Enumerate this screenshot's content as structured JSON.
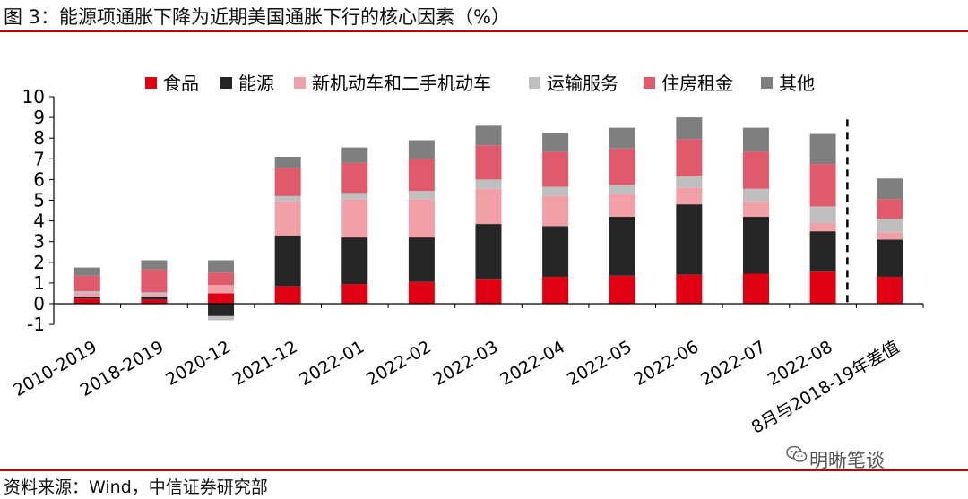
{
  "title": "图 3：能源项通胀下降为近期美国通胀下行的核心因素（%）",
  "source": "资料来源：Wind，中信证券研究部",
  "watermark": "明晰笔谈",
  "chart_data": {
    "type": "bar",
    "stacked": true,
    "categories": [
      "2010-2019",
      "2018-2019",
      "2020-12",
      "2021-12",
      "2022-01",
      "2022-02",
      "2022-03",
      "2022-04",
      "2022-05",
      "2022-06",
      "2022-07",
      "2022-08",
      "8月与2018-19年差值"
    ],
    "series": [
      {
        "name": "食品",
        "color": "#e00012",
        "values": [
          0.25,
          0.2,
          0.5,
          0.85,
          0.95,
          1.05,
          1.2,
          1.3,
          1.35,
          1.4,
          1.45,
          1.55,
          1.3
        ]
      },
      {
        "name": "能源",
        "color": "#262626",
        "values": [
          0.1,
          0.15,
          -0.6,
          2.45,
          2.25,
          2.15,
          2.65,
          2.45,
          2.85,
          3.4,
          2.75,
          1.95,
          1.8
        ]
      },
      {
        "name": "新机动车和二手机动车",
        "color": "#f2a0a8",
        "values": [
          0.15,
          0.1,
          0.4,
          1.65,
          1.85,
          1.85,
          1.7,
          1.45,
          1.1,
          0.8,
          0.75,
          0.4,
          0.35
        ]
      },
      {
        "name": "运输服务",
        "color": "#bfbfbf",
        "values": [
          0.1,
          0.1,
          -0.2,
          0.25,
          0.3,
          0.4,
          0.45,
          0.45,
          0.45,
          0.55,
          0.6,
          0.8,
          0.65
        ]
      },
      {
        "name": "住房租金",
        "color": "#e05a6b",
        "values": [
          0.75,
          1.1,
          0.6,
          1.35,
          1.45,
          1.55,
          1.65,
          1.7,
          1.75,
          1.8,
          1.8,
          2.05,
          0.95
        ]
      },
      {
        "name": "其他",
        "color": "#7f7f7f",
        "values": [
          0.4,
          0.45,
          0.6,
          0.55,
          0.75,
          0.9,
          0.95,
          0.9,
          1.0,
          1.05,
          1.15,
          1.45,
          1.0
        ]
      }
    ],
    "ylim": [
      -1,
      10
    ],
    "yticks": [
      -1,
      0,
      1,
      2,
      3,
      4,
      5,
      6,
      7,
      8,
      9,
      10
    ],
    "legend_position": "top",
    "grid": false,
    "separator_before_category": 12
  }
}
